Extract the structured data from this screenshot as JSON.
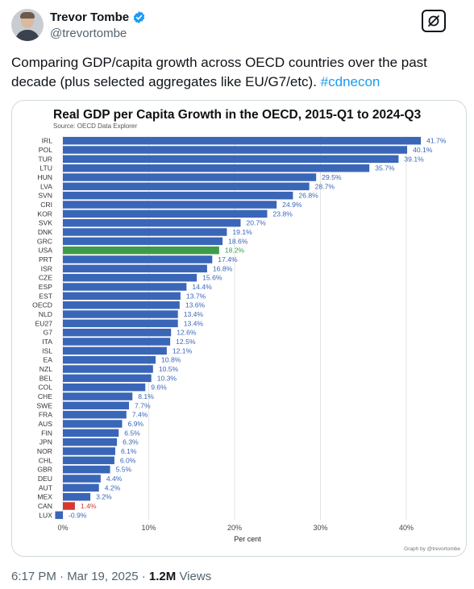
{
  "author": {
    "display_name": "Trevor Tombe",
    "handle": "@trevortombe",
    "avatar_icon": "user-photo",
    "verified_color": "#1d9bf0"
  },
  "tweet": {
    "text": "Comparing GDP/capita growth across OECD countries over the past decade (plus selected aggregates like EU/G7/etc). ",
    "hashtag": "#cdnecon",
    "time": "6:17 PM · Mar 19, 2025 · ",
    "views_count": "1.2M",
    "views_label": " Views"
  },
  "chart_data": {
    "type": "bar",
    "orientation": "horizontal",
    "title": "Real GDP per Capita Growth in the OECD, 2015-Q1 to 2024-Q3",
    "subtitle": "Source: OECD Data Explorer",
    "xlabel": "Per cent",
    "ylabel": "",
    "credit": "Graph by @trevortombe",
    "xlim": [
      -1,
      43
    ],
    "xticks": [
      0,
      10,
      20,
      30,
      40
    ],
    "xtick_labels": [
      "0%",
      "10%",
      "20%",
      "30%",
      "40%"
    ],
    "grid": true,
    "categories": [
      "IRL",
      "POL",
      "TUR",
      "LTU",
      "HUN",
      "LVA",
      "SVN",
      "CRI",
      "KOR",
      "SVK",
      "DNK",
      "GRC",
      "USA",
      "PRT",
      "ISR",
      "CZE",
      "ESP",
      "EST",
      "OECD",
      "NLD",
      "EU27",
      "G7",
      "ITA",
      "ISL",
      "EA",
      "NZL",
      "BEL",
      "COL",
      "CHE",
      "SWE",
      "FRA",
      "AUS",
      "FIN",
      "JPN",
      "NOR",
      "CHL",
      "GBR",
      "DEU",
      "AUT",
      "MEX",
      "CAN",
      "LUX"
    ],
    "values": [
      41.7,
      40.1,
      39.1,
      35.7,
      29.5,
      28.7,
      26.8,
      24.9,
      23.8,
      20.7,
      19.1,
      18.6,
      18.2,
      17.4,
      16.8,
      15.6,
      14.4,
      13.7,
      13.6,
      13.4,
      13.4,
      12.6,
      12.5,
      12.1,
      10.8,
      10.5,
      10.3,
      9.6,
      8.1,
      7.7,
      7.4,
      6.9,
      6.5,
      6.3,
      6.1,
      6.0,
      5.5,
      4.4,
      4.2,
      3.2,
      1.4,
      -0.9
    ],
    "value_labels": [
      "41.7%",
      "40.1%",
      "39.1%",
      "35.7%",
      "29.5%",
      "28.7%",
      "26.8%",
      "24.9%",
      "23.8%",
      "20.7%",
      "19.1%",
      "18.6%",
      "18.2%",
      "17.4%",
      "16.8%",
      "15.6%",
      "14.4%",
      "13.7%",
      "13.6%",
      "13.4%",
      "13.4%",
      "12.6%",
      "12.5%",
      "12.1%",
      "10.8%",
      "10.5%",
      "10.3%",
      "9.6%",
      "8.1%",
      "7.7%",
      "7.4%",
      "6.9%",
      "6.5%",
      "6.3%",
      "6.1%",
      "6.0%",
      "5.5%",
      "4.4%",
      "4.2%",
      "3.2%",
      "1.4%",
      "-0.9%"
    ],
    "colors": {
      "default": "#3a66b8",
      "highlight_usa": "#3f9b4a",
      "highlight_can": "#d33a32",
      "label_default": "#3a66b8",
      "label_usa": "#3f9b4a",
      "label_can": "#d33a32"
    },
    "highlights": {
      "USA": "highlight_usa",
      "CAN": "highlight_can"
    }
  }
}
